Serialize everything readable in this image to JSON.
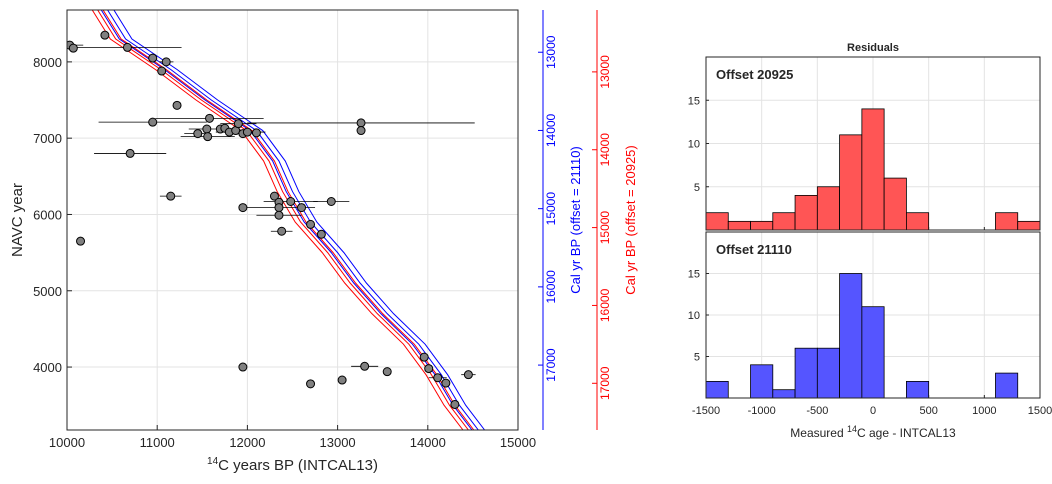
{
  "chart_data": [
    {
      "type": "scatter",
      "x_label": {
        "superscript": "14",
        "text": "C years BP (INTCAL13)"
      },
      "y_label": "NAVC year",
      "xlim": [
        10000,
        15000
      ],
      "xticks": [
        10000,
        11000,
        12000,
        13000,
        14000,
        15000
      ],
      "ylim": [
        3175,
        8680
      ],
      "yticks": [
        4000,
        5000,
        6000,
        7000,
        8000
      ],
      "grid": true,
      "y2label": "Cal yr BP (offset = 21110)",
      "y2color": "#0000ff",
      "y2lim": [
        17830,
        12460
      ],
      "y2ticks": [
        13000,
        14000,
        15000,
        16000,
        17000
      ],
      "y3label": "Cal yr BP (offset = 20925)",
      "y3color": "#ff0000",
      "y3lim": [
        17600,
        12205
      ],
      "y3ticks": [
        13000,
        14000,
        15000,
        16000,
        17000
      ],
      "points": {
        "color": "#808080",
        "x": [
          10030,
          10070,
          10420,
          10670,
          10950,
          11100,
          11050,
          11220,
          10950,
          11580,
          13260,
          13260,
          11450,
          11550,
          11560,
          11700,
          11750,
          11800,
          11870,
          11900,
          11950,
          12000,
          12100,
          10700,
          11150,
          11950,
          12300,
          12350,
          12350,
          12350,
          12480,
          12600,
          12700,
          12820,
          12380,
          12930,
          10150,
          11950,
          12700,
          13050,
          13300,
          13550,
          13960,
          14010,
          14110,
          14200,
          14300,
          14450
        ],
        "y": [
          8220,
          8180,
          8350,
          8190,
          8050,
          8000,
          7880,
          7430,
          7210,
          7260,
          7200,
          7100,
          7060,
          7120,
          7020,
          7120,
          7130,
          7080,
          7100,
          7190,
          7060,
          7080,
          7070,
          6800,
          6240,
          6090,
          6240,
          6160,
          6090,
          5990,
          6170,
          6090,
          5870,
          5740,
          5780,
          6170,
          5650,
          4000,
          3780,
          3830,
          4010,
          3940,
          4130,
          3980,
          3860,
          3790,
          3510,
          3900
        ],
        "xerr": [
          150,
          null,
          null,
          600,
          null,
          80,
          null,
          null,
          600,
          600,
          1260,
          null,
          150,
          200,
          300,
          null,
          null,
          150,
          null,
          200,
          null,
          200,
          null,
          400,
          120,
          null,
          null,
          null,
          400,
          250,
          300,
          null,
          null,
          null,
          120,
          200,
          null,
          null,
          null,
          null,
          150,
          null,
          null,
          null,
          100,
          null,
          null,
          80
        ]
      },
      "curves": [
        {
          "color": "#0000ff",
          "x": [
            10450,
            10650,
            11150,
            11600,
            12100,
            12350,
            12500,
            12700,
            13000,
            13250,
            13550,
            13900,
            14150,
            14350,
            14560
          ],
          "y": [
            8680,
            8300,
            7900,
            7500,
            7100,
            6700,
            6300,
            5900,
            5500,
            5100,
            4700,
            4300,
            3900,
            3500,
            3175
          ]
        },
        {
          "color": "#0000ff",
          "x": [
            10520,
            10720,
            11220,
            11670,
            12170,
            12420,
            12570,
            12770,
            13070,
            13320,
            13620,
            13970,
            14220,
            14420,
            14630
          ],
          "y": [
            8680,
            8300,
            7900,
            7500,
            7100,
            6700,
            6300,
            5900,
            5500,
            5100,
            4700,
            4300,
            3900,
            3500,
            3175
          ]
        },
        {
          "color": "#0000ff",
          "x": [
            10380,
            10580,
            11080,
            11530,
            12030,
            12280,
            12430,
            12630,
            12930,
            13180,
            13480,
            13830,
            14080,
            14280,
            14490
          ],
          "y": [
            8680,
            8300,
            7900,
            7500,
            7100,
            6700,
            6300,
            5900,
            5500,
            5100,
            4700,
            4300,
            3900,
            3500,
            3175
          ]
        },
        {
          "color": "#ff0000",
          "x": [
            10340,
            10540,
            11040,
            11490,
            11990,
            12240,
            12390,
            12590,
            12890,
            13140,
            13440,
            13790,
            14040,
            14240,
            14450
          ],
          "y": [
            8680,
            8300,
            7900,
            7500,
            7100,
            6700,
            6300,
            5900,
            5500,
            5100,
            4700,
            4300,
            3900,
            3500,
            3175
          ]
        },
        {
          "color": "#ff0000",
          "x": [
            10400,
            10600,
            11100,
            11550,
            12050,
            12300,
            12450,
            12650,
            12950,
            13200,
            13500,
            13850,
            14100,
            14300,
            14510
          ],
          "y": [
            8680,
            8300,
            7900,
            7500,
            7100,
            6700,
            6300,
            5900,
            5500,
            5100,
            4700,
            4300,
            3900,
            3500,
            3175
          ]
        },
        {
          "color": "#ff0000",
          "x": [
            10280,
            10480,
            10980,
            11430,
            11930,
            12180,
            12330,
            12530,
            12830,
            13080,
            13380,
            13730,
            13980,
            14180,
            14390
          ],
          "y": [
            8680,
            8300,
            7900,
            7500,
            7100,
            6700,
            6300,
            5900,
            5500,
            5100,
            4700,
            4300,
            3900,
            3500,
            3175
          ]
        }
      ]
    },
    {
      "type": "histogram",
      "title": "Residuals",
      "x_label": {
        "text_before": "Measured ",
        "superscript": "14",
        "text_after": "C age - INTCAL13"
      },
      "bins": [
        -1500,
        -1300,
        -1100,
        -900,
        -700,
        -500,
        -300,
        -100,
        100,
        300,
        500,
        700,
        900,
        1100,
        1300,
        1500
      ],
      "xlim": [
        -1500,
        1500
      ],
      "xticks": [
        -1500,
        -1000,
        -500,
        0,
        500,
        1000,
        1500
      ],
      "ylim": [
        0,
        20
      ],
      "yticks": [
        5,
        10,
        15
      ],
      "grid": true,
      "series": [
        {
          "name": "Offset 20925",
          "color": "#ff5555",
          "values": [
            2,
            1,
            1,
            2,
            4,
            5,
            11,
            14,
            6,
            2,
            0,
            0,
            0,
            2,
            1
          ]
        },
        {
          "name": "Offset 21110",
          "color": "#5555ff",
          "values": [
            2,
            0,
            4,
            1,
            6,
            6,
            15,
            11,
            0,
            2,
            0,
            0,
            0,
            3,
            0
          ]
        }
      ]
    }
  ]
}
